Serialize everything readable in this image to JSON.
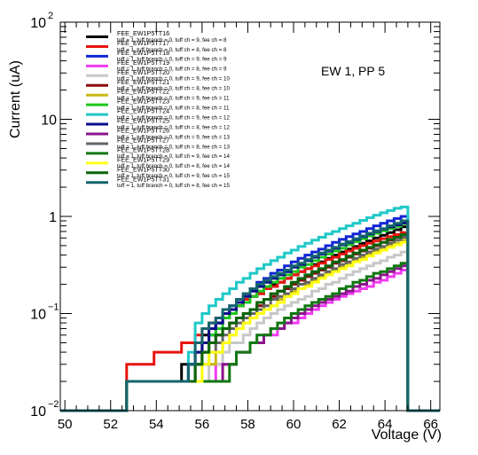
{
  "chart_data": {
    "type": "line",
    "xlabel": "Voltage (V)",
    "ylabel": "Current (uA)",
    "annotation": "EW 1, PP 5",
    "xlim": [
      49.8,
      66.4
    ],
    "ylim": [
      0.01,
      100
    ],
    "yscale": "log",
    "xticks": [
      "50",
      "52",
      "54",
      "56",
      "58",
      "60",
      "62",
      "64",
      "66"
    ],
    "yticks": [
      {
        "base": "10",
        "exp": "2",
        "value": 100
      },
      {
        "base": "10",
        "exp": "",
        "value": 10
      },
      {
        "base": "1",
        "exp": "",
        "value": 1
      },
      {
        "base": "10",
        "exp": "−1",
        "value": 0.1
      },
      {
        "base": "10",
        "exp": "−2",
        "value": 0.01
      }
    ],
    "grid": false,
    "legend_position": "top-left",
    "x": [
      52.7,
      53.0,
      53.3,
      53.6,
      53.9,
      54.2,
      54.5,
      54.8,
      55.1,
      55.4,
      55.7,
      56.0,
      56.3,
      56.6,
      56.9,
      57.2,
      57.5,
      57.8,
      58.1,
      58.4,
      58.7,
      59.0,
      59.3,
      59.6,
      59.9,
      60.2,
      60.5,
      60.8,
      61.1,
      61.4,
      61.7,
      62.0,
      62.3,
      62.6,
      62.9,
      63.2,
      63.5,
      63.8,
      64.1,
      64.4,
      64.7
    ],
    "series": [
      {
        "name": "FEE_EW1P5TT16",
        "detail": "tuff = 1, tuff branch = 0, tuff ch = 9, fee ch = 8",
        "color": "#000000",
        "values": [
          0.02,
          0.02,
          0.02,
          0.02,
          0.02,
          0.02,
          0.02,
          0.02,
          0.03,
          0.03,
          0.04,
          0.06,
          0.07,
          0.08,
          0.09,
          0.11,
          0.12,
          0.13,
          0.15,
          0.16,
          0.18,
          0.2,
          0.21,
          0.23,
          0.25,
          0.27,
          0.29,
          0.32,
          0.34,
          0.37,
          0.4,
          0.43,
          0.46,
          0.49,
          0.53,
          0.56,
          0.6,
          0.64,
          0.68,
          0.73,
          0.78
        ]
      },
      {
        "name": "FEE_EW1P5TT17",
        "detail": "tuff = 1, tuff branch = 0, tuff ch = 8, fee ch = 8",
        "color": "#e8140e",
        "values": [
          0.03,
          0.03,
          0.03,
          0.03,
          0.04,
          0.04,
          0.04,
          0.04,
          0.05,
          0.05,
          0.06,
          0.07,
          0.08,
          0.09,
          0.1,
          0.11,
          0.12,
          0.14,
          0.15,
          0.16,
          0.18,
          0.19,
          0.21,
          0.23,
          0.25,
          0.27,
          0.29,
          0.31,
          0.33,
          0.36,
          0.38,
          0.41,
          0.44,
          0.47,
          0.5,
          0.53,
          0.56,
          0.59,
          0.62,
          0.65,
          0.68
        ]
      },
      {
        "name": "FEE_EW1P5TT18",
        "detail": "tuff = 1, tuff branch = 0, tuff ch = 9, fee ch = 9",
        "color": "#1226d6",
        "values": [
          0.02,
          0.02,
          0.02,
          0.02,
          0.02,
          0.02,
          0.02,
          0.02,
          0.02,
          0.03,
          0.03,
          0.04,
          0.06,
          0.08,
          0.1,
          0.12,
          0.14,
          0.16,
          0.18,
          0.21,
          0.23,
          0.26,
          0.28,
          0.31,
          0.34,
          0.37,
          0.4,
          0.43,
          0.46,
          0.5,
          0.54,
          0.58,
          0.62,
          0.66,
          0.7,
          0.75,
          0.8,
          0.85,
          0.9,
          0.95,
          1.0
        ]
      },
      {
        "name": "FEE_EW1P5TT19",
        "detail": "tuff = 1, tuff branch = 0, tuff ch = 8, fee ch = 9",
        "color": "#f23bf2",
        "values": [
          0.02,
          0.02,
          0.02,
          0.02,
          0.02,
          0.02,
          0.02,
          0.02,
          0.02,
          0.02,
          0.02,
          0.02,
          0.02,
          0.03,
          0.03,
          0.03,
          0.04,
          0.04,
          0.05,
          0.05,
          0.06,
          0.06,
          0.07,
          0.08,
          0.08,
          0.09,
          0.1,
          0.11,
          0.12,
          0.13,
          0.14,
          0.15,
          0.16,
          0.17,
          0.18,
          0.19,
          0.21,
          0.22,
          0.24,
          0.26,
          0.28
        ]
      },
      {
        "name": "FEE_EW1P5TT20",
        "detail": "tuff = 1, tuff branch = 0, tuff ch = 9, fee ch = 10",
        "color": "#c8c8c8",
        "values": [
          0.02,
          0.02,
          0.02,
          0.02,
          0.02,
          0.02,
          0.02,
          0.02,
          0.02,
          0.02,
          0.02,
          0.02,
          0.03,
          0.03,
          0.04,
          0.05,
          0.05,
          0.06,
          0.07,
          0.08,
          0.09,
          0.1,
          0.11,
          0.12,
          0.13,
          0.14,
          0.15,
          0.17,
          0.18,
          0.2,
          0.21,
          0.23,
          0.25,
          0.27,
          0.29,
          0.31,
          0.33,
          0.35,
          0.38,
          0.4,
          0.43
        ]
      },
      {
        "name": "FEE_EW1P5TT21",
        "detail": "tuff = 1, tuff branch = 0, tuff ch = 8, fee ch = 10",
        "color": "#8b0a0a",
        "values": [
          0.02,
          0.02,
          0.02,
          0.02,
          0.02,
          0.02,
          0.02,
          0.02,
          0.02,
          0.02,
          0.03,
          0.04,
          0.05,
          0.06,
          0.07,
          0.08,
          0.09,
          0.1,
          0.11,
          0.12,
          0.14,
          0.15,
          0.17,
          0.18,
          0.2,
          0.22,
          0.24,
          0.26,
          0.28,
          0.3,
          0.33,
          0.35,
          0.38,
          0.41,
          0.44,
          0.47,
          0.5,
          0.54,
          0.57,
          0.61,
          0.65
        ]
      },
      {
        "name": "FEE_EW1P5TT22",
        "detail": "tuff = 1, tuff branch = 0, tuff ch = 9, fee ch = 11",
        "color": "#c8b814",
        "values": [
          0.02,
          0.02,
          0.02,
          0.02,
          0.02,
          0.02,
          0.02,
          0.02,
          0.02,
          0.02,
          0.02,
          0.03,
          0.03,
          0.04,
          0.05,
          0.06,
          0.07,
          0.08,
          0.09,
          0.1,
          0.11,
          0.12,
          0.14,
          0.15,
          0.17,
          0.18,
          0.2,
          0.22,
          0.24,
          0.26,
          0.28,
          0.3,
          0.33,
          0.35,
          0.38,
          0.41,
          0.44,
          0.47,
          0.5,
          0.53,
          0.57
        ]
      },
      {
        "name": "FEE_EW1P5TT23",
        "detail": "tuff = 1, tuff branch = 0, tuff ch = 8, fee ch = 11",
        "color": "#1ec81e",
        "values": [
          0.02,
          0.02,
          0.02,
          0.02,
          0.02,
          0.02,
          0.02,
          0.02,
          0.02,
          0.02,
          0.03,
          0.04,
          0.06,
          0.07,
          0.09,
          0.1,
          0.12,
          0.13,
          0.15,
          0.17,
          0.19,
          0.21,
          0.23,
          0.25,
          0.27,
          0.3,
          0.32,
          0.35,
          0.38,
          0.41,
          0.44,
          0.47,
          0.51,
          0.55,
          0.59,
          0.63,
          0.67,
          0.71,
          0.75,
          0.79,
          0.84
        ]
      },
      {
        "name": "FEE_EW1P5TT24",
        "detail": "tuff = 1, tuff branch = 0, tuff ch = 9, fee ch = 12",
        "color": "#20c8c8",
        "values": [
          0.02,
          0.02,
          0.02,
          0.02,
          0.02,
          0.02,
          0.02,
          0.02,
          0.02,
          0.04,
          0.08,
          0.1,
          0.12,
          0.14,
          0.16,
          0.18,
          0.21,
          0.23,
          0.26,
          0.29,
          0.32,
          0.35,
          0.38,
          0.42,
          0.45,
          0.49,
          0.53,
          0.57,
          0.61,
          0.66,
          0.7,
          0.75,
          0.8,
          0.85,
          0.91,
          0.97,
          1.03,
          1.09,
          1.15,
          1.21,
          1.25
        ]
      },
      {
        "name": "FEE_EW1P5TT25",
        "detail": "tuff = 1, tuff branch = 0, tuff ch = 8, fee ch = 12",
        "color": "#0a0a8c",
        "values": [
          0.02,
          0.02,
          0.02,
          0.02,
          0.02,
          0.02,
          0.02,
          0.02,
          0.02,
          0.03,
          0.04,
          0.05,
          0.07,
          0.08,
          0.1,
          0.11,
          0.13,
          0.15,
          0.17,
          0.19,
          0.21,
          0.23,
          0.25,
          0.27,
          0.3,
          0.32,
          0.35,
          0.38,
          0.41,
          0.44,
          0.47,
          0.51,
          0.54,
          0.58,
          0.62,
          0.66,
          0.7,
          0.74,
          0.78,
          0.82,
          0.86
        ]
      },
      {
        "name": "FEE_EW1P5TT26",
        "detail": "tuff = 1, tuff branch = 0, tuff ch = 9, fee ch = 13",
        "color": "#8c148c",
        "values": [
          0.02,
          0.02,
          0.02,
          0.02,
          0.02,
          0.02,
          0.02,
          0.02,
          0.02,
          0.02,
          0.02,
          0.02,
          0.02,
          0.02,
          0.03,
          0.03,
          0.04,
          0.04,
          0.05,
          0.05,
          0.06,
          0.07,
          0.07,
          0.08,
          0.09,
          0.1,
          0.11,
          0.12,
          0.13,
          0.14,
          0.15,
          0.16,
          0.17,
          0.19,
          0.2,
          0.22,
          0.23,
          0.25,
          0.27,
          0.29,
          0.31
        ]
      },
      {
        "name": "FEE_EW1P5TT27",
        "detail": "tuff = 1, tuff branch = 0, tuff ch = 8, fee ch = 13",
        "color": "#646464",
        "values": [
          0.02,
          0.02,
          0.02,
          0.02,
          0.02,
          0.02,
          0.02,
          0.02,
          0.02,
          0.02,
          0.03,
          0.03,
          0.04,
          0.05,
          0.06,
          0.07,
          0.08,
          0.09,
          0.1,
          0.11,
          0.12,
          0.14,
          0.15,
          0.16,
          0.18,
          0.2,
          0.21,
          0.23,
          0.25,
          0.27,
          0.29,
          0.32,
          0.34,
          0.37,
          0.4,
          0.43,
          0.46,
          0.49,
          0.53,
          0.57,
          0.61
        ]
      },
      {
        "name": "FEE_EW1P5TT28",
        "detail": "tuff = 1, tuff branch = 0, tuff ch = 9, fee ch = 14",
        "color": "#107810",
        "values": [
          0.02,
          0.02,
          0.02,
          0.02,
          0.02,
          0.02,
          0.02,
          0.02,
          0.02,
          0.02,
          0.02,
          0.02,
          0.02,
          0.02,
          0.02,
          0.03,
          0.04,
          0.04,
          0.05,
          0.06,
          0.06,
          0.07,
          0.08,
          0.09,
          0.1,
          0.11,
          0.12,
          0.13,
          0.14,
          0.15,
          0.16,
          0.18,
          0.19,
          0.21,
          0.22,
          0.24,
          0.26,
          0.27,
          0.29,
          0.31,
          0.33
        ]
      },
      {
        "name": "FEE_EW1P5TT29",
        "detail": "tuff = 1, tuff branch = 0, tuff ch = 8, fee ch = 14",
        "color": "#ffff14",
        "values": [
          0.02,
          0.02,
          0.02,
          0.02,
          0.02,
          0.02,
          0.02,
          0.02,
          0.02,
          0.02,
          0.02,
          0.03,
          0.04,
          0.04,
          0.05,
          0.06,
          0.07,
          0.08,
          0.09,
          0.1,
          0.11,
          0.12,
          0.13,
          0.15,
          0.16,
          0.18,
          0.19,
          0.21,
          0.23,
          0.25,
          0.27,
          0.29,
          0.31,
          0.34,
          0.36,
          0.39,
          0.42,
          0.45,
          0.48,
          0.51,
          0.54
        ]
      },
      {
        "name": "FEE_EW1P5TT30",
        "detail": "tuff = 1, tuff branch = 0, tuff ch = 9, fee ch = 15",
        "color": "#0a640a",
        "values": [
          0.02,
          0.02,
          0.02,
          0.02,
          0.02,
          0.02,
          0.02,
          0.02,
          0.02,
          0.02,
          0.03,
          0.04,
          0.05,
          0.06,
          0.07,
          0.08,
          0.09,
          0.1,
          0.11,
          0.13,
          0.14,
          0.16,
          0.17,
          0.19,
          0.21,
          0.23,
          0.25,
          0.27,
          0.29,
          0.31,
          0.34,
          0.36,
          0.39,
          0.42,
          0.45,
          0.48,
          0.51,
          0.54,
          0.58,
          0.61,
          0.65
        ]
      },
      {
        "name": "FEE_EW1P5TT31",
        "detail": "tuff = 1, tuff branch = 0, tuff ch = 8, fee ch = 15",
        "color": "#14646e",
        "values": [
          0.02,
          0.02,
          0.02,
          0.02,
          0.02,
          0.02,
          0.02,
          0.02,
          0.02,
          0.03,
          0.05,
          0.07,
          0.08,
          0.09,
          0.11,
          0.12,
          0.14,
          0.16,
          0.18,
          0.2,
          0.22,
          0.24,
          0.26,
          0.28,
          0.31,
          0.33,
          0.36,
          0.39,
          0.42,
          0.45,
          0.48,
          0.52,
          0.55,
          0.59,
          0.63,
          0.67,
          0.71,
          0.75,
          0.8,
          0.85,
          0.9
        ]
      }
    ]
  }
}
